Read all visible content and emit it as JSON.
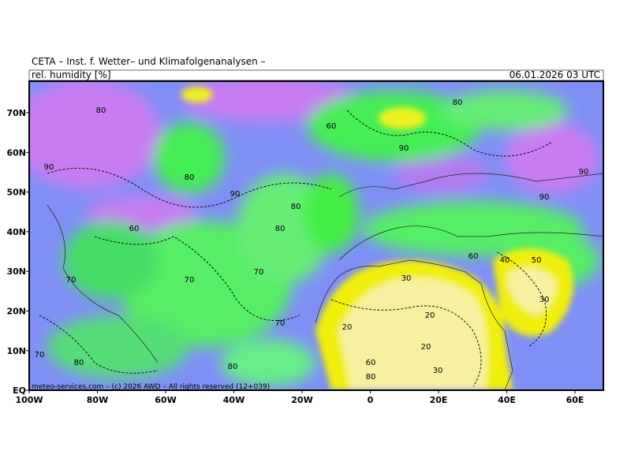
{
  "header": {
    "title": "CETA – Inst. f. Wetter– und Klimafolgenanalysen –",
    "parameter": "rel. humidity [%]",
    "valid_time": "06.01.2026 03 UTC"
  },
  "map": {
    "lat_labels": [
      "70N",
      "60N",
      "50N",
      "40N",
      "30N",
      "20N",
      "10N",
      "EQ"
    ],
    "lon_labels": [
      "100W",
      "80W",
      "60W",
      "40W",
      "20W",
      "0",
      "20E",
      "40E",
      "60E"
    ],
    "contour_labels": [
      90,
      80,
      80,
      90,
      80,
      80,
      70,
      70,
      60,
      70,
      80,
      80,
      70,
      20,
      20,
      20,
      30,
      30,
      40,
      30,
      90,
      90,
      80,
      60,
      90,
      70,
      60,
      80,
      50,
      60
    ],
    "copyright": "meteo-services.com – (c) 2026 AWD – All rights reserved (12+039)"
  }
}
